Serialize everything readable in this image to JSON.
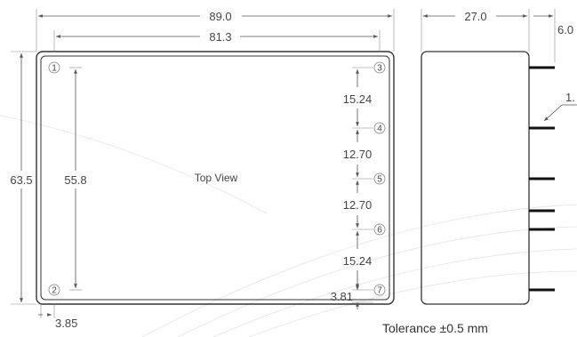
{
  "dims": {
    "overall_width": "89.0",
    "pin_span_width": "81.3",
    "overall_height": "63.5",
    "pin_span_height": "55.8",
    "pin_edge_offset": "3.85",
    "side_depth": "27.0",
    "pin_length": "6.0",
    "pin_dia_partial": "1.",
    "pitch_3_4": "15.24",
    "pitch_4_5": "12.70",
    "pitch_5_6": "12.70",
    "pitch_6_7": "15.24",
    "pin7_offset": "3.81"
  },
  "labels": {
    "view": "Top View",
    "tolerance": "Tolerance ±0.5 mm"
  },
  "pins": [
    "1",
    "2",
    "3",
    "4",
    "5",
    "6",
    "7"
  ]
}
